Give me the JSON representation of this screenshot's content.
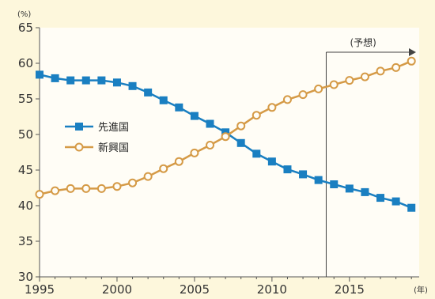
{
  "chart_data": {
    "type": "line",
    "ylabel": "(%)",
    "xlabel": "(年)",
    "ylim": [
      30,
      65
    ],
    "xlim": [
      1995,
      2019.5
    ],
    "yticks": [
      30,
      35,
      40,
      45,
      50,
      55,
      60,
      65
    ],
    "xticks": [
      1995,
      2000,
      2005,
      2010,
      2015
    ],
    "grid": false,
    "legend_position": "left-middle",
    "annotation": {
      "label": "(予想)",
      "from_x": 2013.5
    },
    "x": [
      1995,
      1996,
      1997,
      1998,
      1999,
      2000,
      2001,
      2002,
      2003,
      2004,
      2005,
      2006,
      2007,
      2008,
      2009,
      2010,
      2011,
      2012,
      2013,
      2014,
      2015,
      2016,
      2017,
      2018,
      2019
    ],
    "series": [
      {
        "name": "先進国",
        "color": "#1a7fc1",
        "marker": "square",
        "values": [
          58.4,
          57.9,
          57.6,
          57.6,
          57.6,
          57.3,
          56.8,
          55.9,
          54.8,
          53.8,
          52.6,
          51.5,
          50.3,
          48.8,
          47.3,
          46.2,
          45.1,
          44.4,
          43.6,
          43.0,
          42.4,
          41.9,
          41.1,
          40.6,
          39.7
        ]
      },
      {
        "name": "新興国",
        "color": "#d59a46",
        "marker": "circle",
        "values": [
          41.6,
          42.1,
          42.4,
          42.4,
          42.4,
          42.7,
          43.2,
          44.1,
          45.2,
          46.2,
          47.4,
          48.5,
          49.7,
          51.2,
          52.7,
          53.8,
          54.9,
          55.6,
          56.4,
          57.0,
          57.6,
          58.1,
          58.9,
          59.4,
          60.3
        ]
      }
    ]
  }
}
